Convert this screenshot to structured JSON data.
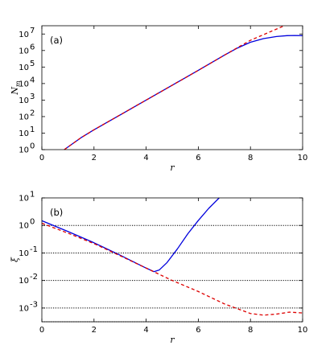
{
  "chart_data": [
    {
      "type": "line",
      "panel_label": "(a)",
      "xlabel": "r",
      "ylabel": "N_m",
      "ylabel_main": "N",
      "ylabel_sub": "m",
      "xlim": [
        0,
        10
      ],
      "ylim_log10": [
        0,
        7.5
      ],
      "yscale": "log",
      "x_ticks": [
        "0",
        "2",
        "4",
        "6",
        "8",
        "10"
      ],
      "y_ticks": [
        {
          "base": "10",
          "exp": "0"
        },
        {
          "base": "10",
          "exp": "1"
        },
        {
          "base": "10",
          "exp": "2"
        },
        {
          "base": "10",
          "exp": "3"
        },
        {
          "base": "10",
          "exp": "4"
        },
        {
          "base": "10",
          "exp": "5"
        },
        {
          "base": "10",
          "exp": "6"
        },
        {
          "base": "10",
          "exp": "7"
        }
      ],
      "series": [
        {
          "style": "solid",
          "color": "#0000dd",
          "x": [
            0.86,
            1.5,
            2,
            3,
            4,
            5,
            6,
            7,
            7.5,
            8,
            8.5,
            9,
            9.4,
            9.7,
            10
          ],
          "y_log10": [
            0,
            0.72,
            1.2,
            2.1,
            3.0,
            3.9,
            4.8,
            5.72,
            6.15,
            6.5,
            6.72,
            6.85,
            6.9,
            6.91,
            6.9
          ]
        },
        {
          "style": "dashed",
          "color": "#dd0000",
          "x": [
            0.86,
            1.5,
            2,
            3,
            4,
            5,
            6,
            7,
            8,
            9,
            9.3
          ],
          "y_log10": [
            0,
            0.72,
            1.2,
            2.1,
            3.0,
            3.9,
            4.8,
            5.72,
            6.62,
            7.3,
            7.5
          ]
        }
      ]
    },
    {
      "type": "line",
      "panel_label": "(b)",
      "xlabel": "r",
      "ylabel": "ξ",
      "xlim": [
        0,
        10
      ],
      "ylim_log10": [
        -3.5,
        1
      ],
      "yscale": "log",
      "x_ticks": [
        "0",
        "2",
        "4",
        "6",
        "8",
        "10"
      ],
      "y_ticks": [
        {
          "base": "10",
          "exp": "-3"
        },
        {
          "base": "10",
          "exp": "-2"
        },
        {
          "base": "10",
          "exp": "-1"
        },
        {
          "base": "10",
          "exp": "0"
        },
        {
          "base": "10",
          "exp": "1"
        }
      ],
      "horizontal_dotted_lines_log10": [
        0,
        -1,
        -2,
        -3,
        -3.5
      ],
      "series": [
        {
          "style": "solid",
          "color": "#0000dd",
          "x": [
            0,
            1,
            2,
            3,
            4,
            4.3,
            4.5,
            4.8,
            5.2,
            5.6,
            6.0,
            6.4,
            6.8
          ],
          "y_log10": [
            0.17,
            -0.22,
            -0.63,
            -1.08,
            -1.55,
            -1.68,
            -1.62,
            -1.35,
            -0.85,
            -0.3,
            0.18,
            0.62,
            1.0
          ]
        },
        {
          "style": "dashed",
          "color": "#dd0000",
          "x": [
            0,
            1,
            2,
            3,
            4,
            5,
            6,
            7,
            8,
            8.5,
            9,
            9.5,
            10
          ],
          "y_log10": [
            0.08,
            -0.28,
            -0.66,
            -1.1,
            -1.55,
            -2.0,
            -2.4,
            -2.85,
            -3.2,
            -3.26,
            -3.22,
            -3.15,
            -3.18
          ]
        }
      ]
    }
  ]
}
